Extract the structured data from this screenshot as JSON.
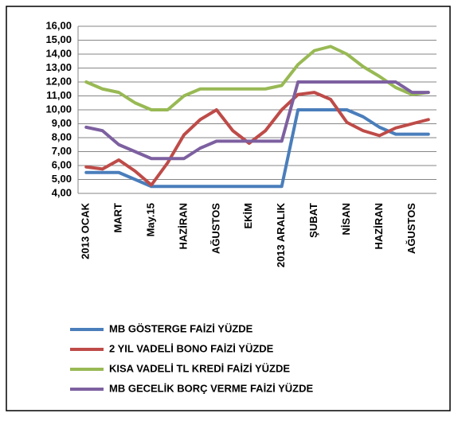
{
  "chart_data": {
    "type": "line",
    "categories": [
      "2013 OCAK",
      null,
      "MART",
      null,
      "May.15",
      null,
      "HAZİRAN",
      null,
      "AĞUSTOS",
      null,
      "EKİM",
      null,
      "2013 ARALIK",
      null,
      "ŞUBAT",
      null,
      "NİSAN",
      null,
      "HAZİRAN",
      null,
      "AĞUSTOS",
      null
    ],
    "series": [
      {
        "name": "MB GÖSTERGE FAİZİ YÜZDE",
        "color": "#4a7ebb",
        "values": [
          5.5,
          5.5,
          5.5,
          5.0,
          4.5,
          4.5,
          4.5,
          4.5,
          4.5,
          4.5,
          4.5,
          4.5,
          4.5,
          10.0,
          10.0,
          10.0,
          10.0,
          9.5,
          8.75,
          8.25,
          8.25,
          8.25
        ]
      },
      {
        "name": "2 YIL VADELİ BONO FAİZİ YÜZDE",
        "color": "#be4b48",
        "values": [
          5.9,
          5.75,
          6.4,
          5.6,
          4.6,
          6.2,
          8.2,
          9.3,
          10.0,
          8.5,
          7.6,
          8.5,
          10.0,
          11.1,
          11.25,
          10.75,
          9.1,
          8.5,
          8.15,
          8.7,
          9.0,
          9.3
        ]
      },
      {
        "name": "KISA VADELİ TL KREDİ FAİZİ YÜZDE",
        "color": "#98b954",
        "values": [
          12.0,
          11.5,
          11.25,
          10.5,
          10.0,
          10.0,
          11.0,
          11.5,
          11.5,
          11.5,
          11.5,
          11.5,
          11.75,
          13.25,
          14.25,
          14.55,
          14.0,
          13.1,
          12.4,
          11.6,
          11.1,
          11.25
        ]
      },
      {
        "name": "MB GECELİK BORÇ VERME FAİZİ YÜZDE",
        "color": "#7d60a0",
        "values": [
          8.75,
          8.5,
          7.5,
          7.0,
          6.5,
          6.5,
          6.5,
          7.25,
          7.75,
          7.75,
          7.75,
          7.75,
          7.75,
          12.0,
          12.0,
          12.0,
          12.0,
          12.0,
          12.0,
          12.0,
          11.25,
          11.25
        ]
      }
    ],
    "ylim": [
      4,
      16
    ],
    "yticks": [
      {
        "value": 4,
        "label": "4,00"
      },
      {
        "value": 5,
        "label": "5,00"
      },
      {
        "value": 6,
        "label": "6,00"
      },
      {
        "value": 7,
        "label": "7,00"
      },
      {
        "value": 8,
        "label": "8,00"
      },
      {
        "value": 9,
        "label": "9,00"
      },
      {
        "value": 10,
        "label": "10,00"
      },
      {
        "value": 11,
        "label": "11,00"
      },
      {
        "value": 12,
        "label": "12,00"
      },
      {
        "value": 13,
        "label": "13,00"
      },
      {
        "value": 14,
        "label": "14,00"
      },
      {
        "value": 15,
        "label": "15,00"
      },
      {
        "value": 16,
        "label": "16,00"
      }
    ],
    "grid": true
  }
}
